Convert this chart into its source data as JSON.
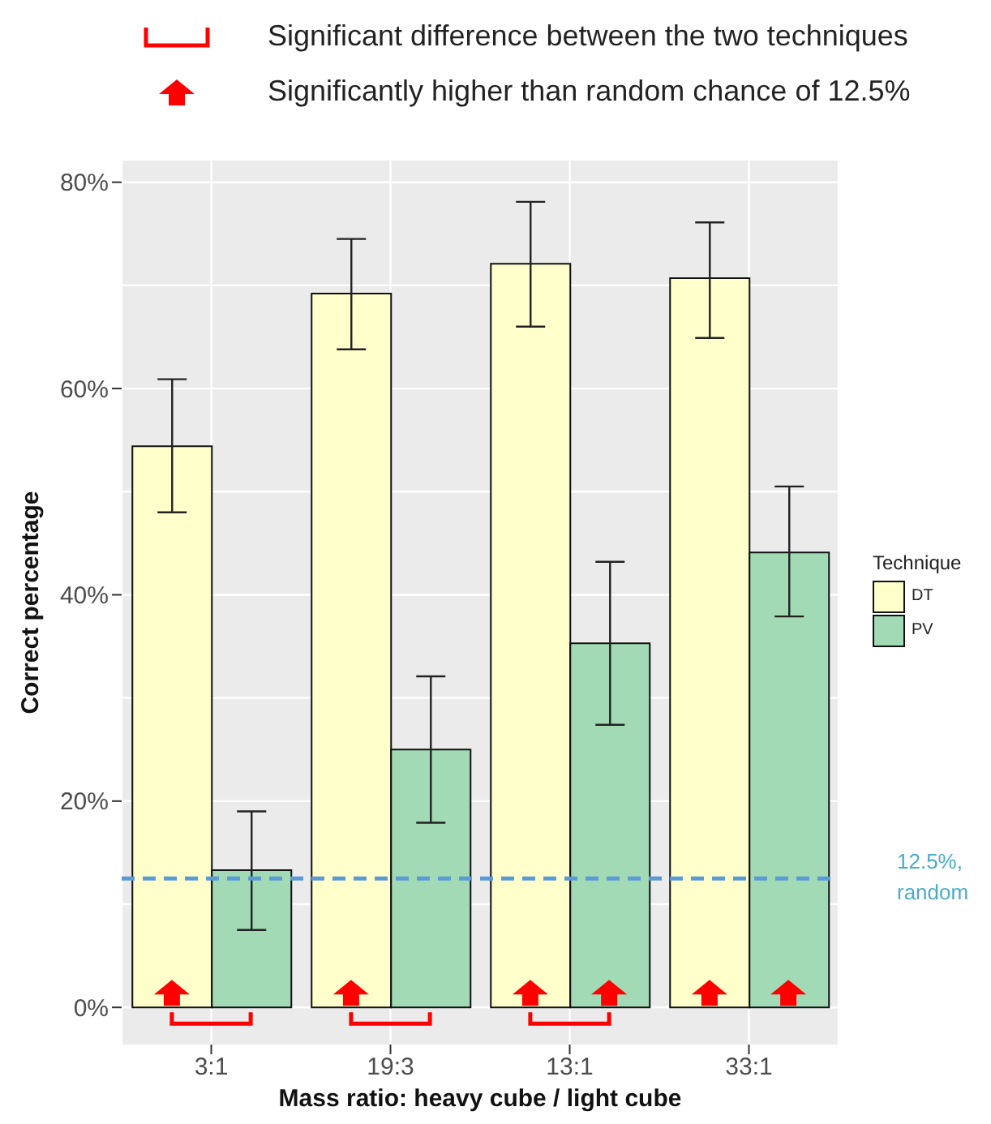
{
  "chart_data": {
    "type": "bar",
    "xlabel": "Mass ratio: heavy cube / light cube",
    "ylabel": "Correct percentage",
    "legend_title": "Technique",
    "categories": [
      "3:1",
      "19:3",
      "13:1",
      "33:1"
    ],
    "series": [
      {
        "name": "DT",
        "color": "#ffffcc",
        "values": [
          54.4,
          69.2,
          72.1,
          70.7
        ],
        "errors": [
          [
            48.0,
            60.9
          ],
          [
            63.8,
            74.5
          ],
          [
            66.0,
            78.1
          ],
          [
            64.9,
            76.1
          ]
        ]
      },
      {
        "name": "PV",
        "color": "#a1dab4",
        "values": [
          13.3,
          25.0,
          35.3,
          44.1
        ],
        "errors": [
          [
            7.5,
            19.0
          ],
          [
            17.9,
            32.1
          ],
          [
            27.4,
            43.2
          ],
          [
            37.9,
            50.5
          ]
        ]
      }
    ],
    "ylim": [
      -3.6,
      82.1
    ],
    "yticks": [
      {
        "value": 0,
        "label": "0%"
      },
      {
        "value": 20,
        "label": "20%"
      },
      {
        "value": 40,
        "label": "40%"
      },
      {
        "value": 60,
        "label": "60%"
      },
      {
        "value": 80,
        "label": "80%"
      }
    ],
    "grid": true,
    "legend": "right",
    "ref_lines": [
      {
        "axis": "y",
        "value": 12.5,
        "label": "12.5%, random",
        "color": "#5b9bd5",
        "line_style": "dashed"
      }
    ],
    "annotations": [
      "Significant difference between the two techniques",
      "Significantly higher than random chance of 12.5%"
    ]
  }
}
